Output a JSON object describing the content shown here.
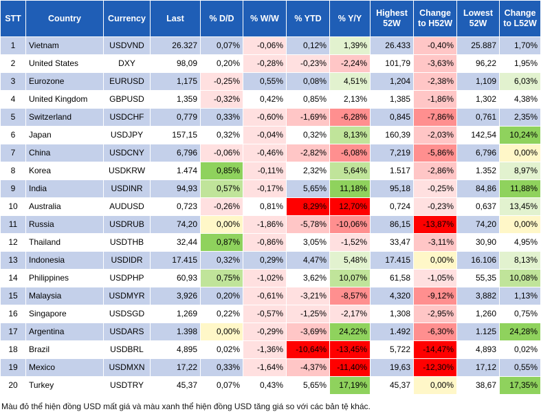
{
  "headers": [
    "STT",
    "Country",
    "Currency",
    "Last",
    "% D/D",
    "% W/W",
    "% YTD",
    "% Y/Y",
    "Highest 52W",
    "Change to H52W",
    "Lowest 52W",
    "Change to L52W"
  ],
  "rows": [
    {
      "stt": "1",
      "country": "Vietnam",
      "currency": "USDVND",
      "last": "26.327",
      "dd": "0,07%",
      "ww": "-0,06%",
      "ytd": "0,12%",
      "yy": "1,39%",
      "h52": "26.433",
      "ch52": "-0,40%",
      "l52": "25.887",
      "cl52": "1,70%"
    },
    {
      "stt": "2",
      "country": "United States",
      "currency": "DXY",
      "last": "98,09",
      "dd": "0,20%",
      "ww": "-0,28%",
      "ytd": "-0,23%",
      "yy": "-2,24%",
      "h52": "101,79",
      "ch52": "-3,63%",
      "l52": "96,22",
      "cl52": "1,95%"
    },
    {
      "stt": "3",
      "country": "Eurozone",
      "currency": "EURUSD",
      "last": "1,175",
      "dd": "-0,25%",
      "ww": "0,55%",
      "ytd": "0,08%",
      "yy": "4,51%",
      "h52": "1,204",
      "ch52": "-2,38%",
      "l52": "1,109",
      "cl52": "6,03%"
    },
    {
      "stt": "4",
      "country": "United Kingdom",
      "currency": "GBPUSD",
      "last": "1,359",
      "dd": "-0,32%",
      "ww": "0,42%",
      "ytd": "0,85%",
      "yy": "2,13%",
      "h52": "1,385",
      "ch52": "-1,86%",
      "l52": "1,302",
      "cl52": "4,38%"
    },
    {
      "stt": "5",
      "country": "Switzerland",
      "currency": "USDCHF",
      "last": "0,779",
      "dd": "0,33%",
      "ww": "-0,60%",
      "ytd": "-1,69%",
      "yy": "-6,28%",
      "h52": "0,845",
      "ch52": "-7,86%",
      "l52": "0,761",
      "cl52": "2,35%"
    },
    {
      "stt": "6",
      "country": "Japan",
      "currency": "USDJPY",
      "last": "157,15",
      "dd": "0,32%",
      "ww": "-0,04%",
      "ytd": "0,32%",
      "yy": "8,13%",
      "h52": "160,39",
      "ch52": "-2,03%",
      "l52": "142,54",
      "cl52": "10,24%"
    },
    {
      "stt": "7",
      "country": "China",
      "currency": "USDCNY",
      "last": "6,796",
      "dd": "-0,06%",
      "ww": "-0,46%",
      "ytd": "-2,82%",
      "yy": "-6,08%",
      "h52": "7,219",
      "ch52": "-5,86%",
      "l52": "6,796",
      "cl52": "0,00%"
    },
    {
      "stt": "8",
      "country": "Korea",
      "currency": "USDKRW",
      "last": "1.474",
      "dd": "0,85%",
      "ww": "-0,11%",
      "ytd": "2,32%",
      "yy": "5,64%",
      "h52": "1.517",
      "ch52": "-2,86%",
      "l52": "1.352",
      "cl52": "8,97%"
    },
    {
      "stt": "9",
      "country": "India",
      "currency": "USDINR",
      "last": "94,93",
      "dd": "0,57%",
      "ww": "-0,17%",
      "ytd": "5,65%",
      "yy": "11,18%",
      "h52": "95,18",
      "ch52": "-0,25%",
      "l52": "84,86",
      "cl52": "11,88%"
    },
    {
      "stt": "10",
      "country": "Australia",
      "currency": "AUDUSD",
      "last": "0,723",
      "dd": "-0,26%",
      "ww": "0,81%",
      "ytd": "8,29%",
      "yy": "12,70%",
      "h52": "0,724",
      "ch52": "-0,23%",
      "l52": "0,637",
      "cl52": "13,45%"
    },
    {
      "stt": "11",
      "country": "Russia",
      "currency": "USDRUB",
      "last": "74,20",
      "dd": "0,00%",
      "ww": "-1,86%",
      "ytd": "-5,78%",
      "yy": "-10,06%",
      "h52": "86,15",
      "ch52": "-13,87%",
      "l52": "74,20",
      "cl52": "0,00%"
    },
    {
      "stt": "12",
      "country": "Thailand",
      "currency": "USDTHB",
      "last": "32,44",
      "dd": "0,87%",
      "ww": "-0,86%",
      "ytd": "3,05%",
      "yy": "-1,52%",
      "h52": "33,47",
      "ch52": "-3,11%",
      "l52": "30,90",
      "cl52": "4,95%"
    },
    {
      "stt": "13",
      "country": "Indonesia",
      "currency": "USDIDR",
      "last": "17.415",
      "dd": "0,32%",
      "ww": "0,29%",
      "ytd": "4,47%",
      "yy": "5,48%",
      "h52": "17.415",
      "ch52": "0,00%",
      "l52": "16.106",
      "cl52": "8,13%"
    },
    {
      "stt": "14",
      "country": "Philippines",
      "currency": "USDPHP",
      "last": "60,93",
      "dd": "0,75%",
      "ww": "-1,02%",
      "ytd": "3,62%",
      "yy": "10,07%",
      "h52": "61,58",
      "ch52": "-1,05%",
      "l52": "55,35",
      "cl52": "10,08%"
    },
    {
      "stt": "15",
      "country": "Malaysia",
      "currency": "USDMYR",
      "last": "3,926",
      "dd": "0,20%",
      "ww": "-0,61%",
      "ytd": "-3,21%",
      "yy": "-8,57%",
      "h52": "4,320",
      "ch52": "-9,12%",
      "l52": "3,882",
      "cl52": "1,13%"
    },
    {
      "stt": "16",
      "country": "Singapore",
      "currency": "USDSGD",
      "last": "1,269",
      "dd": "0,22%",
      "ww": "-0,57%",
      "ytd": "-1,25%",
      "yy": "-2,17%",
      "h52": "1,308",
      "ch52": "-2,95%",
      "l52": "1,260",
      "cl52": "0,75%"
    },
    {
      "stt": "17",
      "country": "Argentina",
      "currency": "USDARS",
      "last": "1.398",
      "dd": "0,00%",
      "ww": "-0,29%",
      "ytd": "-3,69%",
      "yy": "24,22%",
      "h52": "1.492",
      "ch52": "-6,30%",
      "l52": "1.125",
      "cl52": "24,28%"
    },
    {
      "stt": "18",
      "country": "Brazil",
      "currency": "USDBRL",
      "last": "4,895",
      "dd": "0,02%",
      "ww": "-1,36%",
      "ytd": "-10,64%",
      "yy": "-13,45%",
      "h52": "5,722",
      "ch52": "-14,47%",
      "l52": "4,893",
      "cl52": "0,02%"
    },
    {
      "stt": "19",
      "country": "Mexico",
      "currency": "USDMXN",
      "last": "17,22",
      "dd": "0,33%",
      "ww": "-1,64%",
      "ytd": "-4,37%",
      "yy": "-11,40%",
      "h52": "19,63",
      "ch52": "-12,30%",
      "l52": "17,12",
      "cl52": "0,55%"
    },
    {
      "stt": "20",
      "country": "Turkey",
      "currency": "USDTRY",
      "last": "45,37",
      "dd": "0,07%",
      "ww": "0,43%",
      "ytd": "5,65%",
      "yy": "17,19%",
      "h52": "45,37",
      "ch52": "0,00%",
      "l52": "38,67",
      "cl52": "17,35%"
    }
  ],
  "note": "Màu đỏ thể hiện đồng USD mất giá và màu xanh thể hiện đồng USD tăng giá so với các bản tệ khác.",
  "colors": {
    "header_bg": "#1f5eb6",
    "stripe": "#c4d0ea",
    "strong_red": "#ff0000",
    "red": "#ff8f8f",
    "light_red": "#ffc6c6",
    "pale_red": "#ffe0e0",
    "strong_green": "#8fd25d",
    "green": "#c0e49a",
    "pale_green": "#e2f2cf",
    "neutral_yellow": "#fff7c8"
  }
}
